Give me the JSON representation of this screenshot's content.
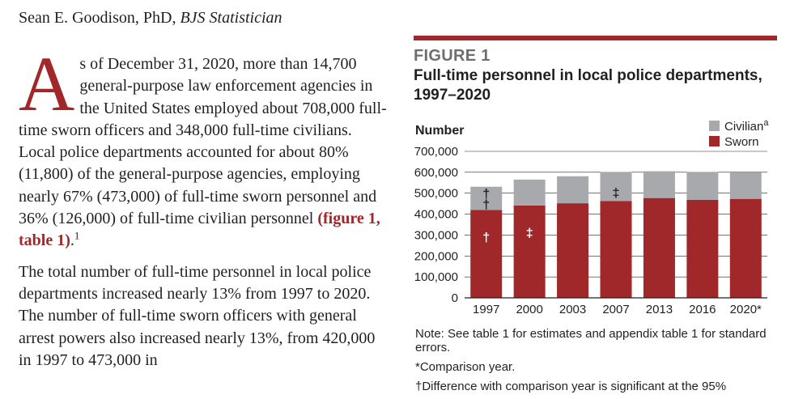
{
  "author": {
    "name": "Sean E. Goodison, PhD, ",
    "role": "BJS Statistician"
  },
  "body": {
    "p1_dropcap": "A",
    "p1_text": "s of December 31, 2020, more than 14,700 general-purpose law enforcement agencies in the United States employed about 708,000 full-time sworn officers and 348,000 full-time civilians. Local police departments accounted for about 80% (11,800) of the general-purpose agencies, employing nearly 67% (473,000) of full-time sworn personnel and 36% (126,000) of full-time civilian personnel ",
    "p1_link": "(figure 1, table 1)",
    "p1_end": ".",
    "p1_footnote": "1",
    "p2_text": "The total number of full-time personnel in local police departments increased nearly 13% from 1997 to 2020. The number of full-time sworn officers with general arrest powers also increased nearly 13%, from 420,000 in 1997 to 473,000 in"
  },
  "figure": {
    "label": "FIGURE 1",
    "title": "Full-time personnel in local police departments, 1997–2020"
  },
  "chart_data": {
    "type": "bar",
    "stacked": true,
    "ylabel": "Number",
    "ylim": [
      0,
      700000
    ],
    "yticks": [
      "0",
      "100,000",
      "200,000",
      "300,000",
      "400,000",
      "500,000",
      "600,000",
      "700,000"
    ],
    "categories": [
      "1997",
      "2000",
      "2003",
      "2007",
      "2013",
      "2016",
      "2020*"
    ],
    "series": [
      {
        "name": "Sworn",
        "color": "#a0282a",
        "values": [
          420000,
          441000,
          452000,
          463000,
          477000,
          468000,
          473000
        ]
      },
      {
        "name": "Civilian",
        "name_sup": "a",
        "color": "#a7a9ac",
        "values": [
          111000,
          124000,
          129000,
          138000,
          128000,
          133000,
          126000
        ]
      }
    ],
    "markers": [
      {
        "category": "1997",
        "series": "Sworn",
        "symbol": "†"
      },
      {
        "category": "1997",
        "series": "Civilian",
        "symbol": "†"
      },
      {
        "category": "1997",
        "series": "Total",
        "symbol": "†"
      },
      {
        "category": "2000",
        "series": "Sworn",
        "symbol": "‡"
      },
      {
        "category": "2007",
        "series": "Civilian",
        "symbol": "‡"
      }
    ],
    "grid": true,
    "legend_position": "top-right"
  },
  "notes": {
    "note1": "Note: See table 1 for estimates and appendix table 1 for standard errors.",
    "note2": "*Comparison year.",
    "note3": "†Difference with comparison year is significant at the 95%"
  },
  "colors": {
    "accent": "#a0282a",
    "civilian": "#a7a9ac"
  }
}
